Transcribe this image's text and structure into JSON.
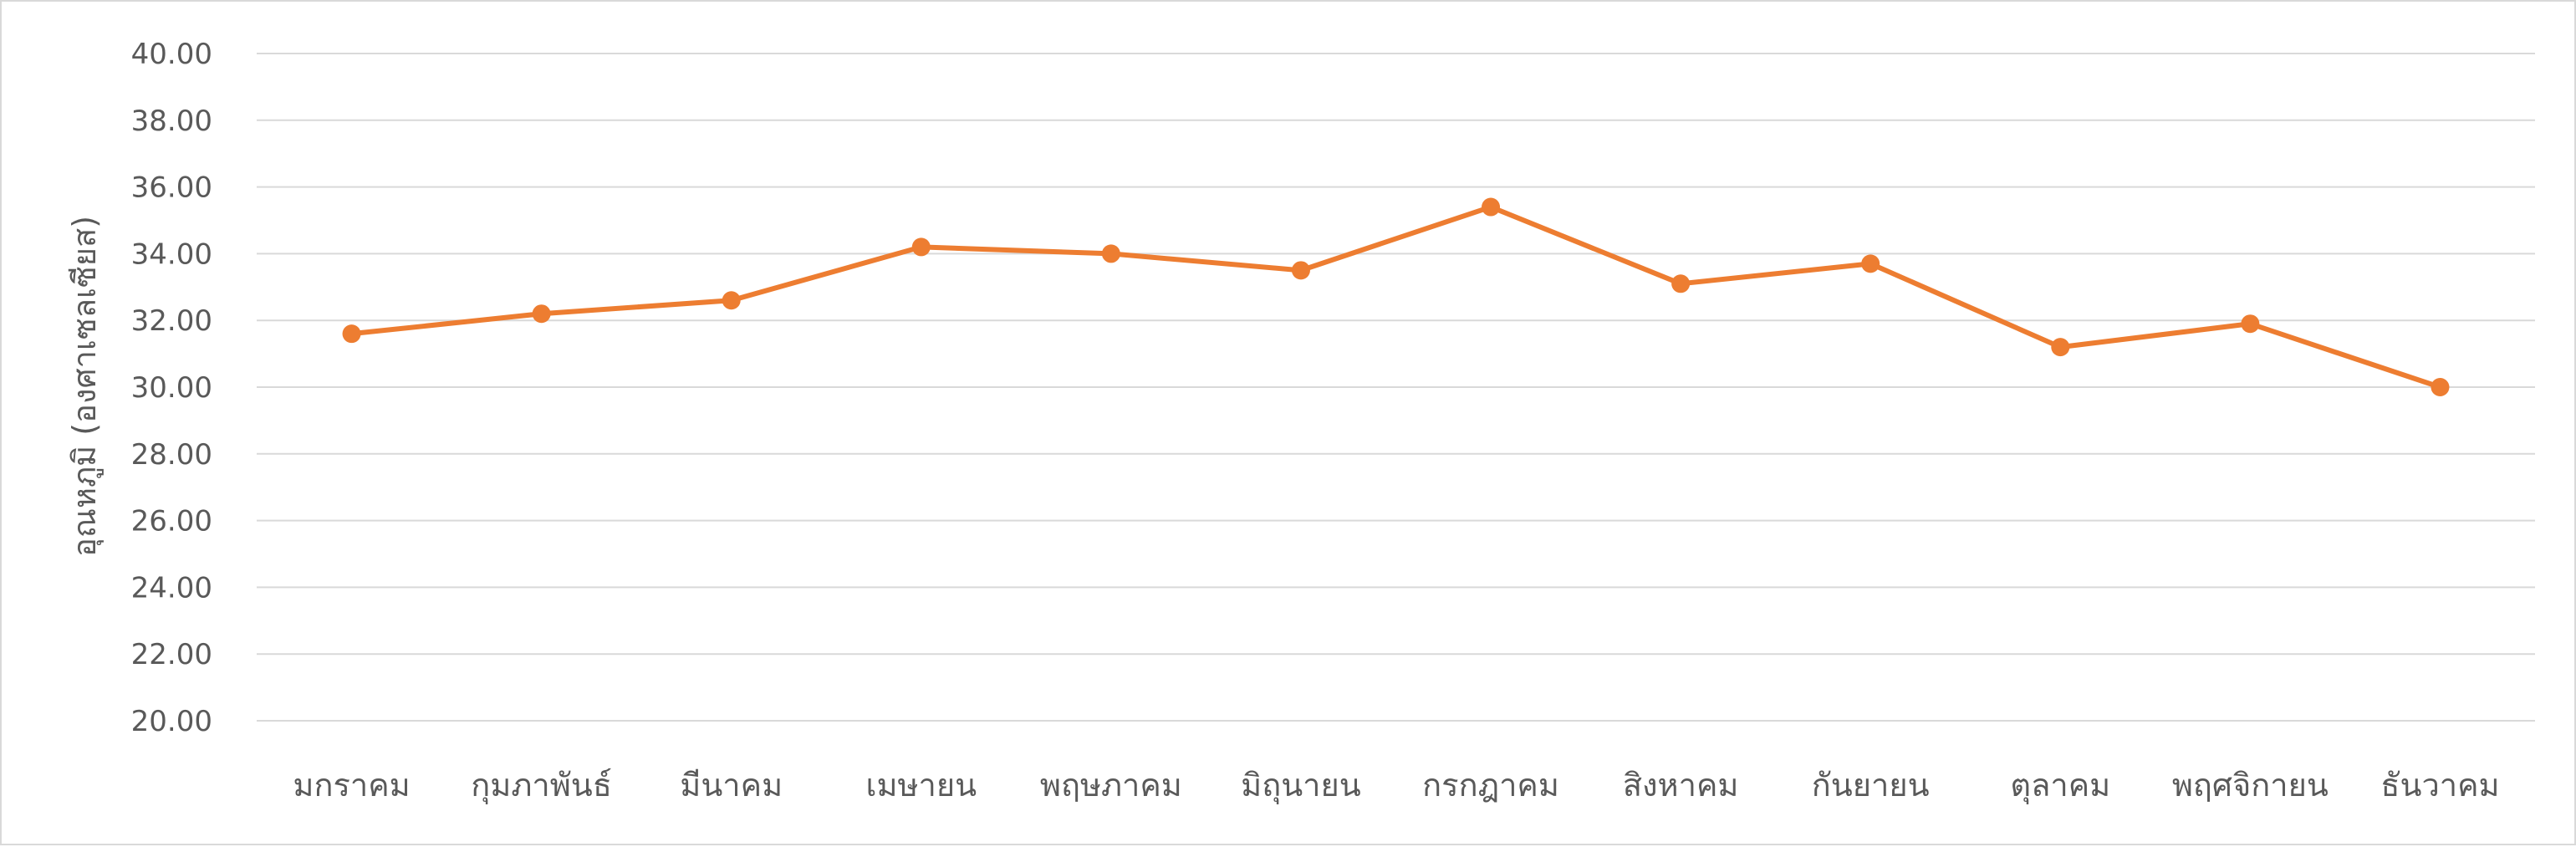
{
  "chart_data": {
    "type": "line",
    "title": "",
    "xlabel": "",
    "ylabel": "อุณหภูมิ (องศาเซลเซียส)",
    "ylim": [
      20,
      40
    ],
    "y_ticks": [
      "20.00",
      "22.00",
      "24.00",
      "26.00",
      "28.00",
      "30.00",
      "32.00",
      "34.00",
      "36.00",
      "38.00",
      "40.00"
    ],
    "categories": [
      "มกราคม",
      "กุมภาพันธ์",
      "มีนาคม",
      "เมษายน",
      "พฤษภาคม",
      "มิถุนายน",
      "กรกฎาคม",
      "สิงหาคม",
      "กันยายน",
      "ตุลาคม",
      "พฤศจิกายน",
      "ธันวาคม"
    ],
    "series": [
      {
        "values": [
          31.6,
          32.2,
          32.6,
          34.2,
          34.0,
          33.5,
          35.4,
          33.1,
          33.7,
          31.2,
          31.9,
          30.0
        ]
      }
    ],
    "grid": true,
    "legend": "none",
    "colors": {
      "line": "#ED7D31",
      "grid": "#D9D9D9",
      "text": "#595959"
    }
  }
}
